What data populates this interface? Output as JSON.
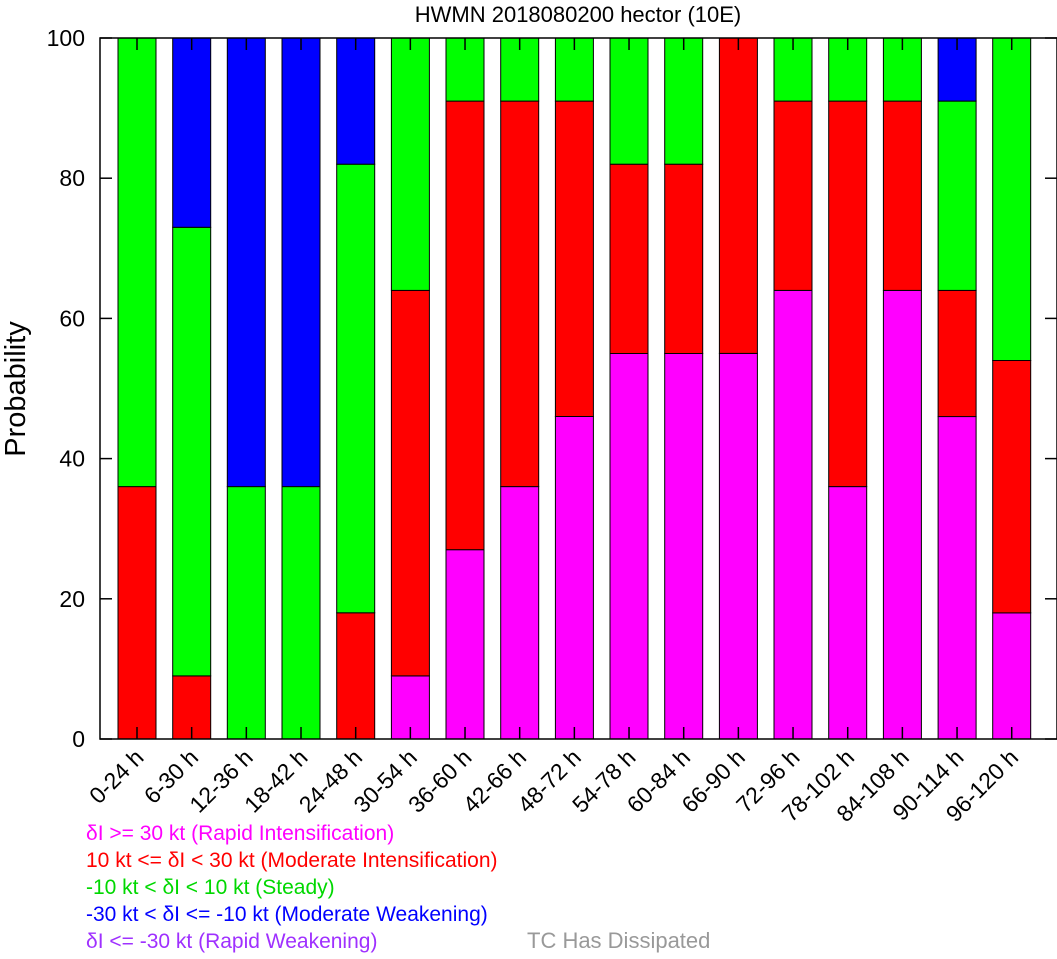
{
  "chart_data": {
    "type": "bar",
    "stacked": true,
    "title": "HWMN 2018080200 hector (10E)",
    "ylabel": "Probability",
    "ylim": [
      0,
      100
    ],
    "yticks": [
      "0",
      "20",
      "40",
      "60",
      "80",
      "100"
    ],
    "grid": false,
    "categories": [
      "0-24 h",
      "6-30 h",
      "12-36 h",
      "18-42 h",
      "24-48 h",
      "30-54 h",
      "36-60 h",
      "42-66 h",
      "48-72 h",
      "54-78 h",
      "60-84 h",
      "66-90 h",
      "72-96 h",
      "78-102 h",
      "84-108 h",
      "90-114 h",
      "96-120 h"
    ],
    "series": [
      {
        "name": "Rapid Intensification",
        "color": "#ff00ff",
        "values": [
          0,
          0,
          0,
          0,
          0,
          9,
          27,
          36,
          46,
          55,
          55,
          55,
          64,
          36,
          64,
          46,
          18
        ]
      },
      {
        "name": "Moderate Intensification",
        "color": "#ff0000",
        "values": [
          36,
          9,
          0,
          0,
          18,
          55,
          64,
          55,
          45,
          27,
          27,
          45,
          27,
          55,
          27,
          18,
          36
        ]
      },
      {
        "name": "Steady",
        "color": "#00ff00",
        "values": [
          64,
          64,
          36,
          36,
          64,
          36,
          9,
          9,
          9,
          18,
          18,
          0,
          9,
          9,
          9,
          27,
          46
        ]
      },
      {
        "name": "Moderate Weakening",
        "color": "#0000ff",
        "values": [
          0,
          27,
          64,
          64,
          18,
          0,
          0,
          0,
          0,
          0,
          0,
          0,
          0,
          0,
          0,
          9,
          0
        ]
      },
      {
        "name": "Rapid Weakening",
        "color": "#9f30ff",
        "values": [
          0,
          0,
          0,
          0,
          0,
          0,
          0,
          0,
          0,
          0,
          0,
          0,
          0,
          0,
          0,
          0,
          0
        ]
      }
    ],
    "legend": {
      "placement": "bottom-left",
      "entries": [
        {
          "text": "δI >= 30 kt (Rapid Intensification)",
          "color": "#ff00ff"
        },
        {
          "text": "10 kt <= δI < 30 kt (Moderate Intensification)",
          "color": "#ff0000"
        },
        {
          "text": "-10 kt < δI < 10 kt (Steady)",
          "color": "#00d800"
        },
        {
          "text": "-30 kt < δI <= -10 kt (Moderate Weakening)",
          "color": "#0000ff"
        },
        {
          "text": "δI <= -30 kt (Rapid Weakening)",
          "color": "#9f30ff"
        }
      ],
      "extra": {
        "text": "TC Has Dissipated",
        "color": "#999999"
      }
    }
  }
}
